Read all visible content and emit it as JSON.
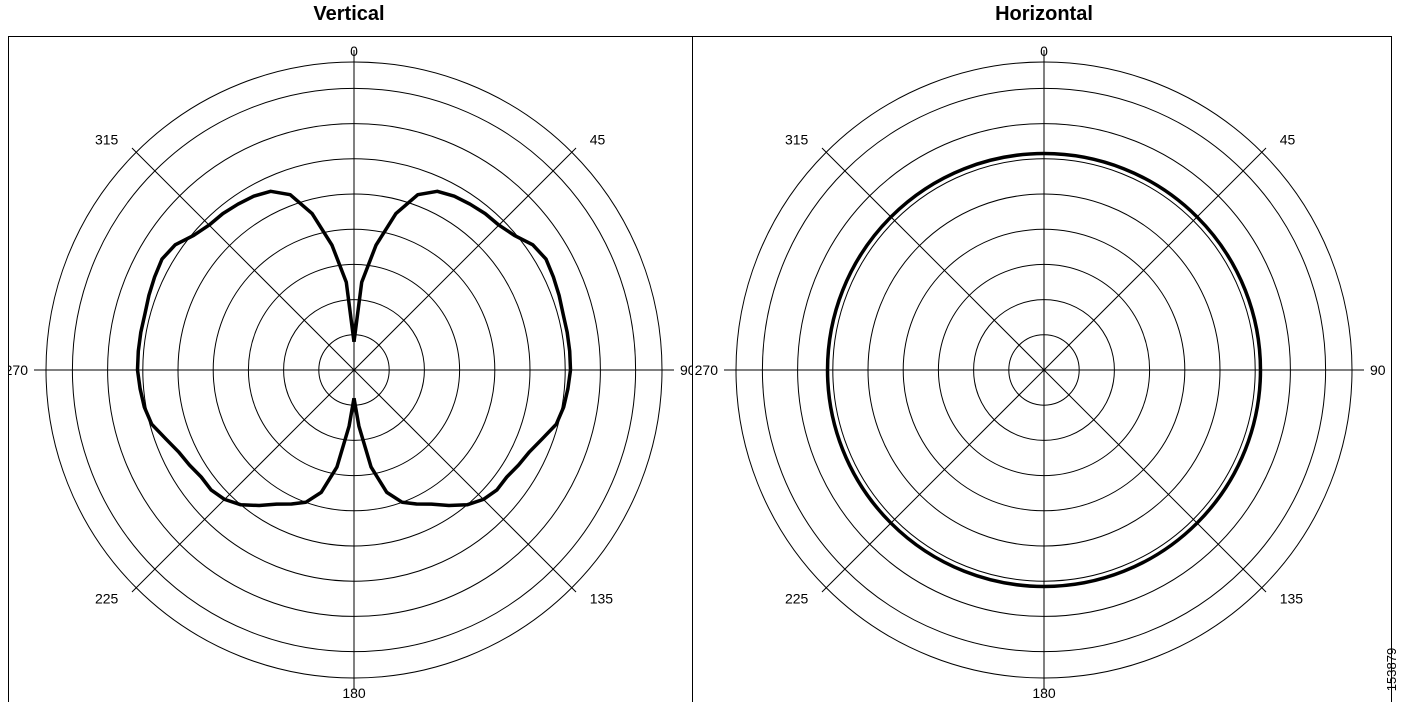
{
  "chart_data": [
    {
      "type": "polar-line",
      "title": "Vertical",
      "angle_labels": [
        "0",
        "45",
        "90",
        "135",
        "180",
        "225",
        "270",
        "315"
      ],
      "rings": 8,
      "series": [
        {
          "theta": [
            0,
            5,
            10,
            15,
            20,
            25,
            30,
            35,
            40,
            45,
            50,
            55,
            60,
            65,
            70,
            75,
            80,
            85,
            90,
            95,
            100,
            105,
            110,
            115,
            120,
            125,
            130,
            135,
            140,
            145,
            150,
            155,
            160,
            165,
            170,
            175,
            180
          ],
          "r": [
            0.8,
            2.5,
            3.6,
            4.6,
            5.3,
            5.6,
            5.7,
            5.75,
            5.8,
            5.82,
            5.95,
            6.2,
            6.3,
            6.25,
            6.2,
            6.15,
            6.15,
            6.15,
            6.15,
            6.1,
            6.05,
            5.95,
            5.7,
            5.5,
            5.4,
            5.3,
            5.3,
            5.2,
            5.0,
            4.7,
            4.4,
            4.2,
            4.0,
            3.6,
            2.8,
            1.6,
            0.8
          ],
          "symmetric": true
        }
      ]
    },
    {
      "type": "polar-line",
      "title": "Horizontal",
      "angle_labels": [
        "0",
        "45",
        "90",
        "135",
        "180",
        "225",
        "270",
        "315"
      ],
      "rings": 8,
      "series": [
        {
          "theta": [
            0,
            360
          ],
          "r": [
            6.15,
            6.15
          ]
        }
      ]
    }
  ],
  "figure_id": "153879"
}
